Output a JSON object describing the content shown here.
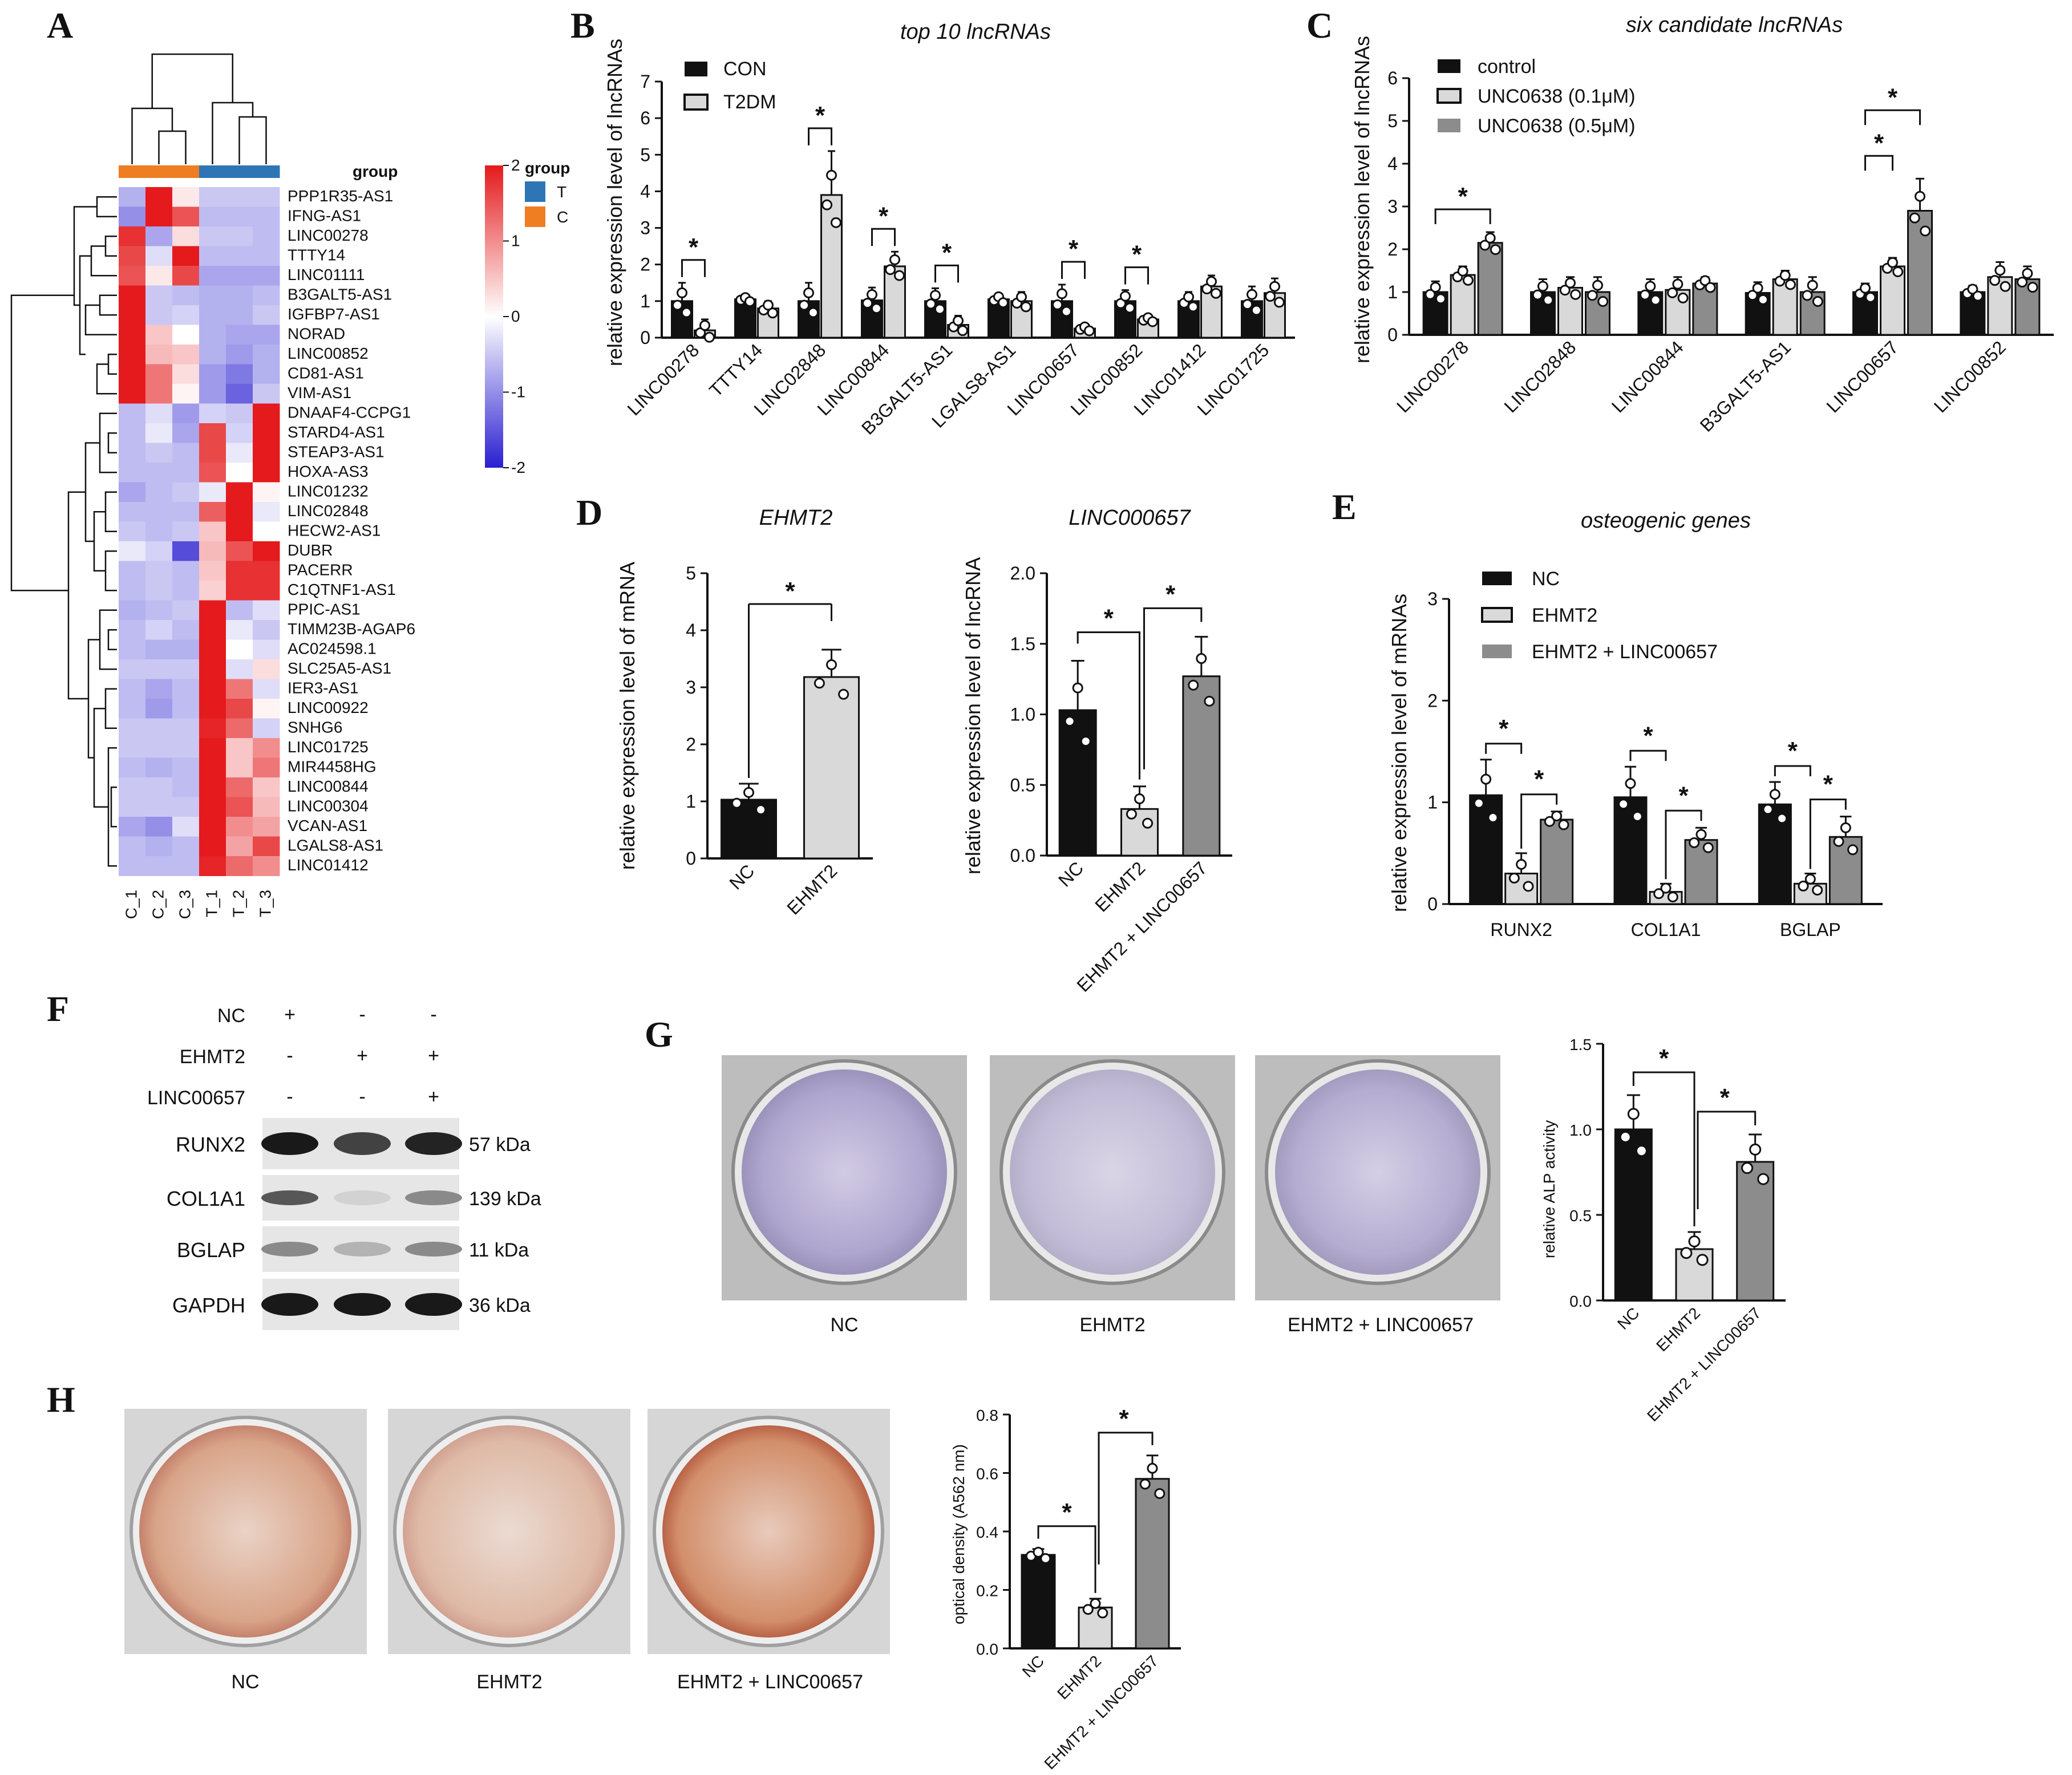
{
  "colors": {
    "black": "#111111",
    "light_gray": "#d9d9d9",
    "mid_gray": "#8c8c8c",
    "heat_high": "#e41a1c",
    "heat_mid": "#ffffff",
    "heat_low": "#2a1fd0",
    "group_T": "#2e75b6",
    "group_C": "#ef7d22",
    "alp_stain": "#8a7fb8",
    "ars_stain": "#c0392b"
  },
  "panel_letters": [
    "A",
    "B",
    "C",
    "D",
    "E",
    "F",
    "G",
    "H"
  ],
  "panel_A": {
    "chart_data": {
      "type": "heatmap",
      "columns": [
        "C_1",
        "C_2",
        "C_3",
        "T_1",
        "T_2",
        "T_3"
      ],
      "rows": [
        "PPP1R35-AS1",
        "IFNG-AS1",
        "LINC00278",
        "TTTY14",
        "LINC01111",
        "B3GALT5-AS1",
        "IGFBP7-AS1",
        "NORAD",
        "LINC00852",
        "CD81-AS1",
        "VIM-AS1",
        "DNAAF4-CCPG1",
        "STARD4-AS1",
        "STEAP3-AS1",
        "HOXA-AS3",
        "LINC01232",
        "LINC02848",
        "HECW2-AS1",
        "DUBR",
        "PACERR",
        "C1QTNF1-AS1",
        "PPIC-AS1",
        "TIMM23B-AGAP6",
        "AC024598.1",
        "SLC25A5-AS1",
        "IER3-AS1",
        "LINC00922",
        "SNHG6",
        "LINC01725",
        "MIR4458HG",
        "LINC00844",
        "LINC00304",
        "VCAN-AS1",
        "LGALS8-AS1",
        "LINC01412"
      ],
      "values": [
        [
          -0.7,
          2,
          0.2,
          -0.5,
          -0.5,
          -0.5
        ],
        [
          -1,
          2,
          1.5,
          -0.6,
          -0.6,
          -0.6
        ],
        [
          1.8,
          -0.8,
          0.3,
          -0.5,
          -0.5,
          -0.6
        ],
        [
          1.6,
          -0.3,
          2,
          -0.6,
          -0.6,
          -0.6
        ],
        [
          1.5,
          0.2,
          1.6,
          -0.8,
          -0.8,
          -0.8
        ],
        [
          2,
          -0.5,
          -0.6,
          -0.7,
          -0.7,
          -0.6
        ],
        [
          2,
          -0.5,
          -0.4,
          -0.7,
          -0.7,
          -0.5
        ],
        [
          2,
          0.5,
          0,
          -0.7,
          -0.8,
          -0.8
        ],
        [
          2,
          0.6,
          0.5,
          -0.7,
          -0.9,
          -0.7
        ],
        [
          2,
          1.2,
          0.3,
          -0.9,
          -1.2,
          -0.7
        ],
        [
          2,
          1.2,
          0.1,
          -0.9,
          -1.4,
          -0.5
        ],
        [
          -0.6,
          -0.3,
          -0.9,
          -0.4,
          -0.5,
          2
        ],
        [
          -0.6,
          -0.2,
          -0.8,
          1.6,
          -0.4,
          2
        ],
        [
          -0.6,
          -0.5,
          -0.6,
          1.6,
          -0.2,
          2
        ],
        [
          -0.6,
          -0.6,
          -0.6,
          1.5,
          0,
          2
        ],
        [
          -0.8,
          -0.6,
          -0.5,
          -0.2,
          2,
          0.1
        ],
        [
          -0.6,
          -0.6,
          -0.6,
          1.4,
          2,
          -0.2
        ],
        [
          -0.5,
          -0.6,
          -0.5,
          0.5,
          2,
          0
        ],
        [
          -0.2,
          -0.4,
          -1.6,
          0.6,
          1.5,
          2
        ],
        [
          -0.6,
          -0.5,
          -0.6,
          0.5,
          1.8,
          1.8
        ],
        [
          -0.6,
          -0.5,
          -0.6,
          0.4,
          1.8,
          1.8
        ],
        [
          -0.7,
          -0.6,
          -0.5,
          2,
          -0.6,
          -0.3
        ],
        [
          -0.6,
          -0.4,
          -0.6,
          2,
          -0.2,
          -0.5
        ],
        [
          -0.6,
          -0.7,
          -0.7,
          2,
          0,
          -0.3
        ],
        [
          -0.5,
          -0.5,
          -0.5,
          2,
          -0.3,
          0.3
        ],
        [
          -0.6,
          -0.8,
          -0.6,
          2,
          1.2,
          -0.3
        ],
        [
          -0.6,
          -0.9,
          -0.6,
          2,
          1.6,
          0.1
        ],
        [
          -0.5,
          -0.5,
          -0.5,
          1.9,
          1.3,
          -0.4
        ],
        [
          -0.5,
          -0.5,
          -0.5,
          2,
          0.5,
          1
        ],
        [
          -0.6,
          -0.7,
          -0.6,
          2,
          0.5,
          1.2
        ],
        [
          -0.5,
          -0.5,
          -0.6,
          2,
          1.3,
          0.5
        ],
        [
          -0.5,
          -0.5,
          -0.5,
          2,
          1.5,
          0.6
        ],
        [
          -0.8,
          -1,
          -0.3,
          2,
          1,
          0.8
        ],
        [
          -0.6,
          -0.7,
          -0.6,
          2,
          0.8,
          1.6
        ],
        [
          -0.6,
          -0.6,
          -0.6,
          1.9,
          1.3,
          1
        ]
      ],
      "group_header": "group",
      "groups": [
        "C",
        "C",
        "C",
        "T",
        "T",
        "T"
      ],
      "legend_title": "group",
      "legend_entries": [
        "T",
        "C"
      ],
      "scale_ticks": [
        "2",
        "1",
        "0",
        "-1",
        "-2"
      ]
    }
  },
  "panel_B": {
    "chart_data": {
      "type": "bar",
      "title": "top 10 lncRNAs",
      "ylabel": "relative expression level of lncRNAs",
      "ylim": [
        0,
        7
      ],
      "yticks": [
        "0",
        "1",
        "2",
        "3",
        "4",
        "5",
        "6",
        "7"
      ],
      "categories": [
        "LINC00278",
        "TTTY14",
        "LINC02848",
        "LINC00844",
        "B3GALT5-AS1",
        "LGALS8-AS1",
        "LINC00657",
        "LINC00852",
        "LINC01412",
        "LINC01725"
      ],
      "series": [
        {
          "name": "CON",
          "values": [
            1.0,
            1.05,
            1.0,
            1.02,
            1.0,
            1.05,
            1.0,
            1.0,
            1.0,
            1.0
          ],
          "errors": [
            0.5,
            0.1,
            0.5,
            0.35,
            0.35,
            0.15,
            0.45,
            0.3,
            0.25,
            0.4
          ]
        },
        {
          "name": "T2DM",
          "values": [
            0.2,
            0.8,
            3.9,
            1.95,
            0.35,
            1.0,
            0.25,
            0.5,
            1.4,
            1.22
          ],
          "errors": [
            0.3,
            0.2,
            1.2,
            0.4,
            0.25,
            0.25,
            0.1,
            0.1,
            0.3,
            0.4
          ]
        }
      ],
      "significance": [
        "*",
        "",
        "*",
        "*",
        "*",
        "",
        "*",
        "*",
        "",
        ""
      ],
      "legend_position": "top-left"
    }
  },
  "panel_C": {
    "chart_data": {
      "type": "bar",
      "title": "six candidate lncRNAs",
      "ylabel": "relative expression level of lncRNAs",
      "ylim": [
        0,
        6
      ],
      "yticks": [
        "0",
        "1",
        "2",
        "3",
        "4",
        "5",
        "6"
      ],
      "categories": [
        "LINC00278",
        "LINC02848",
        "LINC00844",
        "B3GALT5-AS1",
        "LINC00657",
        "LINC00852"
      ],
      "series": [
        {
          "name": "control",
          "values": [
            1.0,
            1.0,
            1.0,
            0.98,
            1.0,
            1.0
          ],
          "errors": [
            0.25,
            0.3,
            0.3,
            0.25,
            0.2,
            0.15
          ]
        },
        {
          "name": "UNC0638 (0.1μM)",
          "values": [
            1.4,
            1.1,
            1.05,
            1.3,
            1.6,
            1.35
          ],
          "errors": [
            0.2,
            0.25,
            0.3,
            0.2,
            0.2,
            0.35
          ]
        },
        {
          "name": "UNC0638 (0.5μM)",
          "values": [
            2.15,
            1.0,
            1.2,
            1.0,
            2.9,
            1.3
          ],
          "errors": [
            0.25,
            0.35,
            0.15,
            0.35,
            0.75,
            0.3
          ]
        }
      ],
      "significance_brackets": [
        {
          "category": "LINC00278",
          "from": 0,
          "to": 2,
          "label": "*"
        },
        {
          "category": "LINC00657",
          "from": 0,
          "to": 1,
          "label": "*"
        },
        {
          "category": "LINC00657",
          "from": 0,
          "to": 2,
          "label": "*"
        }
      ],
      "legend_position": "top-left"
    }
  },
  "panel_D1": {
    "chart_data": {
      "type": "bar",
      "title": "EHMT2",
      "ylabel": "relative expression level of mRNA",
      "ylim": [
        0,
        5
      ],
      "yticks": [
        "0",
        "1",
        "2",
        "3",
        "4",
        "5"
      ],
      "categories": [
        "NC",
        "EHMT2"
      ],
      "values": [
        1.03,
        3.18
      ],
      "errors": [
        0.28,
        0.48
      ],
      "significance": "*"
    }
  },
  "panel_D2": {
    "chart_data": {
      "type": "bar",
      "title": "LINC000657",
      "ylabel": "relative expression level of lncRNA",
      "ylim": [
        0,
        2.0
      ],
      "yticks": [
        "0.0",
        "0.5",
        "1.0",
        "1.5",
        "2.0"
      ],
      "categories": [
        "NC",
        "EHMT2",
        "EHMT2 + LINC00657"
      ],
      "values": [
        1.03,
        0.33,
        1.27
      ],
      "errors": [
        0.35,
        0.16,
        0.28
      ],
      "significance": [
        "*",
        "*"
      ]
    }
  },
  "panel_E": {
    "chart_data": {
      "type": "bar",
      "title": "osteogenic genes",
      "ylabel": "relative expression level of mRNAs",
      "ylim": [
        0,
        3
      ],
      "yticks": [
        "0",
        "1",
        "2",
        "3"
      ],
      "categories": [
        "RUNX2",
        "COL1A1",
        "BGLAP"
      ],
      "series": [
        {
          "name": "NC",
          "values": [
            1.07,
            1.05,
            0.98
          ],
          "errors": [
            0.35,
            0.3,
            0.22
          ]
        },
        {
          "name": "EHMT2",
          "values": [
            0.3,
            0.12,
            0.2
          ],
          "errors": [
            0.2,
            0.08,
            0.1
          ]
        },
        {
          "name": "EHMT2 + LINC00657",
          "values": [
            0.83,
            0.63,
            0.66
          ],
          "errors": [
            0.08,
            0.12,
            0.2
          ]
        }
      ],
      "significance": [
        "*",
        "*"
      ],
      "legend_position": "top-left"
    }
  },
  "panel_F": {
    "conditions": [
      {
        "label": "NC",
        "marks": [
          "+",
          "-",
          "-"
        ]
      },
      {
        "label": "EHMT2",
        "marks": [
          "-",
          "+",
          "+"
        ]
      },
      {
        "label": "LINC00657",
        "marks": [
          "-",
          "-",
          "+"
        ]
      }
    ],
    "bands": [
      {
        "protein": "RUNX2",
        "size": "57 kDa",
        "intensity": [
          1.0,
          0.8,
          0.95
        ]
      },
      {
        "protein": "COL1A1",
        "size": "139 kDa",
        "intensity": [
          0.7,
          0.1,
          0.45
        ]
      },
      {
        "protein": "BGLAP",
        "size": "11 kDa",
        "intensity": [
          0.45,
          0.25,
          0.45
        ]
      },
      {
        "protein": "GAPDH",
        "size": "36 kDa",
        "intensity": [
          1.0,
          1.0,
          1.0
        ]
      }
    ]
  },
  "panel_G": {
    "wells": [
      {
        "label": "NC",
        "stain_level": 0.8
      },
      {
        "label": "EHMT2",
        "stain_level": 0.35
      },
      {
        "label": "EHMT2 + LINC00657",
        "stain_level": 0.65
      }
    ],
    "chart_data": {
      "type": "bar",
      "ylabel": "relative ALP activity",
      "ylim": [
        0,
        1.5
      ],
      "yticks": [
        "0.0",
        "0.5",
        "1.0",
        "1.5"
      ],
      "categories": [
        "NC",
        "EHMT2",
        "EHMT2 + LINC00657"
      ],
      "values": [
        1.0,
        0.3,
        0.81
      ],
      "errors": [
        0.2,
        0.1,
        0.16
      ],
      "significance": [
        "*",
        "*"
      ]
    }
  },
  "panel_H": {
    "wells": [
      {
        "label": "NC",
        "stain_level": 0.6
      },
      {
        "label": "EHMT2",
        "stain_level": 0.3
      },
      {
        "label": "EHMT2 + LINC00657",
        "stain_level": 0.9
      }
    ],
    "chart_data": {
      "type": "bar",
      "ylabel": "optical density (A562 nm)",
      "ylim": [
        0,
        0.8
      ],
      "yticks": [
        "0.0",
        "0.2",
        "0.4",
        "0.6",
        "0.8"
      ],
      "categories": [
        "NC",
        "EHMT2",
        "EHMT2 + LINC00657"
      ],
      "values": [
        0.32,
        0.14,
        0.58
      ],
      "errors": [
        0.02,
        0.03,
        0.08
      ],
      "significance": [
        "*",
        "*"
      ]
    }
  }
}
